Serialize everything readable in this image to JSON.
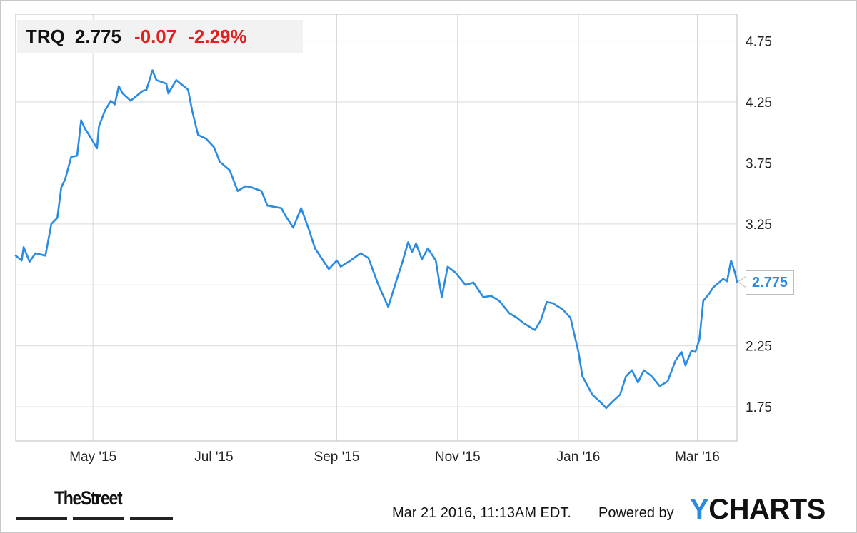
{
  "header": {
    "ticker": "TRQ",
    "price": "2.775",
    "change": "-0.07",
    "change_pct": "-2.29%"
  },
  "last_value_label": "2.775",
  "footer": {
    "timestamp": "Mar 21 2016, 11:13AM EDT.",
    "powered_by": "Powered by",
    "ycharts_y": "Y",
    "ycharts_rest": "CHARTS",
    "thestreet": "TheStreet"
  },
  "colors": {
    "line": "#2b8be0",
    "negative": "#e32020",
    "grid": "#d9d9d9",
    "header_bg": "#f2f2f2"
  },
  "chart_data": {
    "type": "line",
    "title": "",
    "xlabel": "",
    "ylabel": "",
    "grid": true,
    "y_axis_position": "right",
    "ylim": [
      1.47,
      4.97
    ],
    "xlim": [
      "2015-03-23",
      "2016-03-21"
    ],
    "y_ticks": [
      "1.75",
      "2.25",
      "2.75",
      "3.25",
      "3.75",
      "4.25",
      "4.75"
    ],
    "x_ticks": [
      {
        "date": "2015-05-01",
        "label": "May '15"
      },
      {
        "date": "2015-07-01",
        "label": "Jul '15"
      },
      {
        "date": "2015-09-01",
        "label": "Sep '15"
      },
      {
        "date": "2015-11-01",
        "label": "Nov '15"
      },
      {
        "date": "2016-01-01",
        "label": "Jan '16"
      },
      {
        "date": "2016-03-01",
        "label": "Mar '16"
      }
    ],
    "series": [
      {
        "name": "TRQ",
        "points": [
          [
            "2015-03-23",
            2.99
          ],
          [
            "2015-03-26",
            2.95
          ],
          [
            "2015-03-27",
            3.06
          ],
          [
            "2015-03-30",
            2.94
          ],
          [
            "2015-04-02",
            3.01
          ],
          [
            "2015-04-07",
            2.99
          ],
          [
            "2015-04-10",
            3.25
          ],
          [
            "2015-04-13",
            3.3
          ],
          [
            "2015-04-15",
            3.55
          ],
          [
            "2015-04-17",
            3.62
          ],
          [
            "2015-04-20",
            3.8
          ],
          [
            "2015-04-23",
            3.81
          ],
          [
            "2015-04-25",
            4.1
          ],
          [
            "2015-04-27",
            4.03
          ],
          [
            "2015-04-29",
            3.98
          ],
          [
            "2015-05-03",
            3.87
          ],
          [
            "2015-05-04",
            4.05
          ],
          [
            "2015-05-07",
            4.18
          ],
          [
            "2015-05-10",
            4.26
          ],
          [
            "2015-05-12",
            4.23
          ],
          [
            "2015-05-14",
            4.38
          ],
          [
            "2015-05-16",
            4.32
          ],
          [
            "2015-05-20",
            4.26
          ],
          [
            "2015-05-26",
            4.34
          ],
          [
            "2015-05-28",
            4.35
          ],
          [
            "2015-05-31",
            4.51
          ],
          [
            "2015-06-02",
            4.43
          ],
          [
            "2015-06-07",
            4.4
          ],
          [
            "2015-06-08",
            4.32
          ],
          [
            "2015-06-12",
            4.43
          ],
          [
            "2015-06-18",
            4.35
          ],
          [
            "2015-06-20",
            4.18
          ],
          [
            "2015-06-23",
            3.98
          ],
          [
            "2015-06-27",
            3.95
          ],
          [
            "2015-07-01",
            3.88
          ],
          [
            "2015-07-04",
            3.76
          ],
          [
            "2015-07-09",
            3.69
          ],
          [
            "2015-07-13",
            3.52
          ],
          [
            "2015-07-17",
            3.56
          ],
          [
            "2015-07-20",
            3.55
          ],
          [
            "2015-07-25",
            3.52
          ],
          [
            "2015-07-28",
            3.4
          ],
          [
            "2015-08-04",
            3.38
          ],
          [
            "2015-08-06",
            3.32
          ],
          [
            "2015-08-10",
            3.22
          ],
          [
            "2015-08-14",
            3.38
          ],
          [
            "2015-08-18",
            3.2
          ],
          [
            "2015-08-21",
            3.05
          ],
          [
            "2015-08-28",
            2.88
          ],
          [
            "2015-09-01",
            2.95
          ],
          [
            "2015-09-03",
            2.9
          ],
          [
            "2015-09-08",
            2.95
          ],
          [
            "2015-09-13",
            3.01
          ],
          [
            "2015-09-17",
            2.97
          ],
          [
            "2015-09-22",
            2.75
          ],
          [
            "2015-09-27",
            2.57
          ],
          [
            "2015-10-01",
            2.78
          ],
          [
            "2015-10-04",
            2.93
          ],
          [
            "2015-10-07",
            3.1
          ],
          [
            "2015-10-09",
            3.02
          ],
          [
            "2015-10-11",
            3.09
          ],
          [
            "2015-10-14",
            2.96
          ],
          [
            "2015-10-17",
            3.05
          ],
          [
            "2015-10-21",
            2.95
          ],
          [
            "2015-10-24",
            2.65
          ],
          [
            "2015-10-27",
            2.9
          ],
          [
            "2015-10-31",
            2.85
          ],
          [
            "2015-11-05",
            2.75
          ],
          [
            "2015-11-09",
            2.77
          ],
          [
            "2015-11-14",
            2.65
          ],
          [
            "2015-11-18",
            2.66
          ],
          [
            "2015-11-22",
            2.62
          ],
          [
            "2015-11-27",
            2.52
          ],
          [
            "2015-12-01",
            2.48
          ],
          [
            "2015-12-04",
            2.44
          ],
          [
            "2015-12-07",
            2.41
          ],
          [
            "2015-12-10",
            2.38
          ],
          [
            "2015-12-13",
            2.46
          ],
          [
            "2015-12-16",
            2.61
          ],
          [
            "2015-12-19",
            2.6
          ],
          [
            "2015-12-24",
            2.55
          ],
          [
            "2015-12-28",
            2.48
          ],
          [
            "2016-01-01",
            2.2
          ],
          [
            "2016-01-03",
            2.0
          ],
          [
            "2016-01-08",
            1.85
          ],
          [
            "2016-01-12",
            1.79
          ],
          [
            "2016-01-15",
            1.74
          ],
          [
            "2016-01-18",
            1.79
          ],
          [
            "2016-01-22",
            1.85
          ],
          [
            "2016-01-25",
            2.0
          ],
          [
            "2016-01-28",
            2.05
          ],
          [
            "2016-01-31",
            1.95
          ],
          [
            "2016-02-03",
            2.05
          ],
          [
            "2016-02-07",
            2.0
          ],
          [
            "2016-02-11",
            1.92
          ],
          [
            "2016-02-15",
            1.96
          ],
          [
            "2016-02-19",
            2.13
          ],
          [
            "2016-02-22",
            2.2
          ],
          [
            "2016-02-24",
            2.09
          ],
          [
            "2016-02-27",
            2.21
          ],
          [
            "2016-02-29",
            2.2
          ],
          [
            "2016-03-02",
            2.3
          ],
          [
            "2016-03-04",
            2.62
          ],
          [
            "2016-03-07",
            2.68
          ],
          [
            "2016-03-09",
            2.73
          ],
          [
            "2016-03-12",
            2.77
          ],
          [
            "2016-03-14",
            2.8
          ],
          [
            "2016-03-16",
            2.78
          ],
          [
            "2016-03-18",
            2.95
          ],
          [
            "2016-03-20",
            2.85
          ],
          [
            "2016-03-21",
            2.775
          ]
        ]
      }
    ]
  }
}
